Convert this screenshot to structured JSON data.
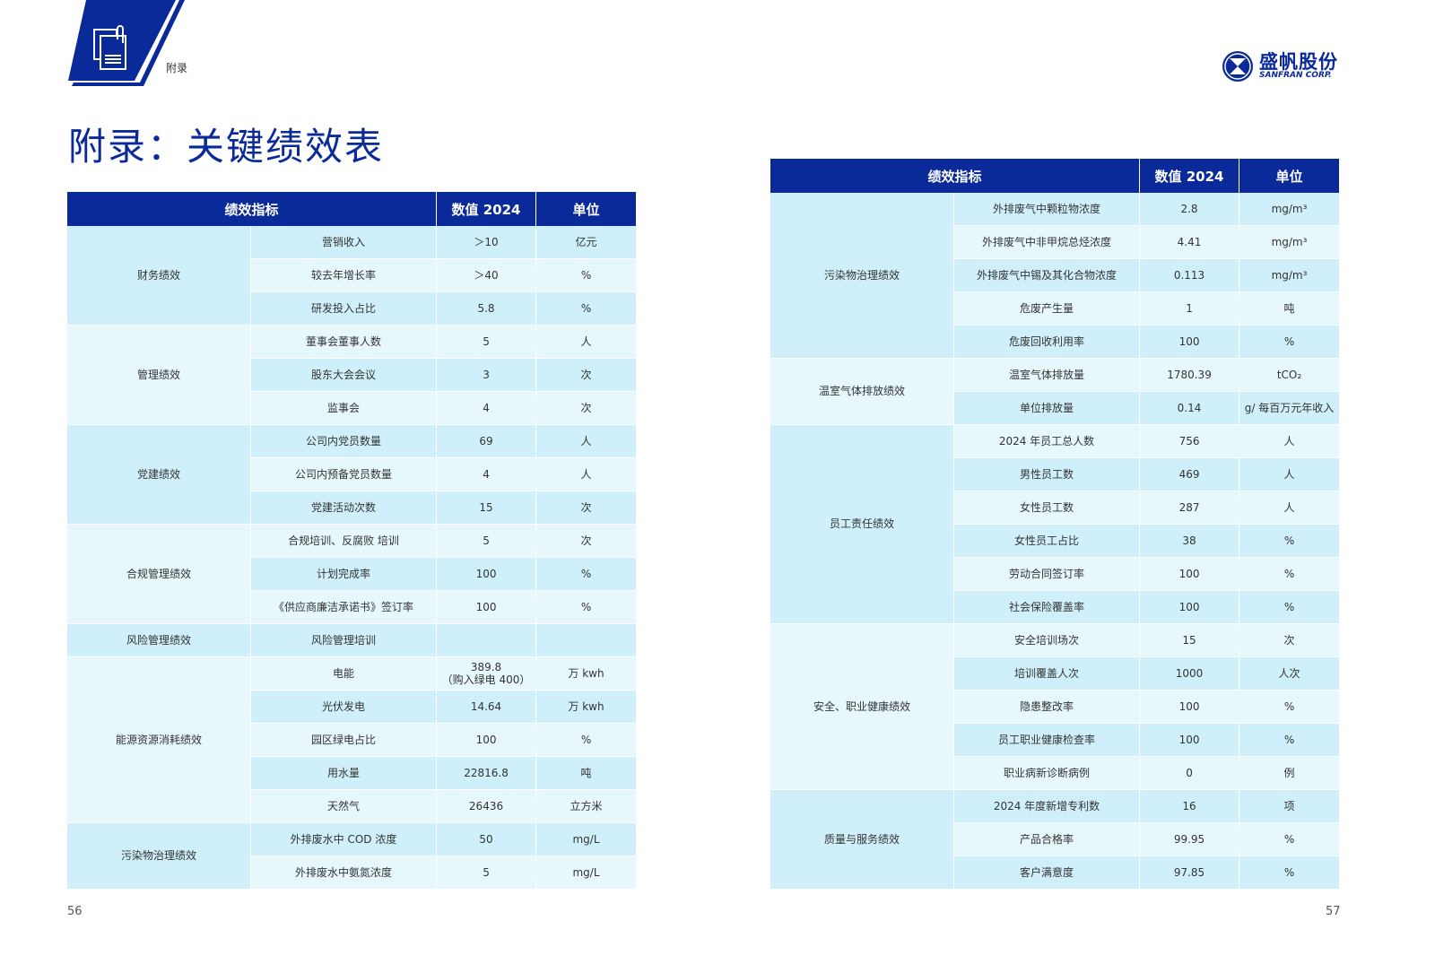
{
  "header": {
    "section_label": "附录",
    "icon": "document-clip-icon",
    "brand_color": "#0a2a9a"
  },
  "logo": {
    "cn": "盛帆股份",
    "en": "SANFRAN CORP."
  },
  "page_title": "附录：关键绩效表",
  "columns": [
    "绩效指标",
    "数值 2024",
    "单位"
  ],
  "colors": {
    "header": "#0a2a9a",
    "row_dark": "#cff0fb",
    "row_light": "#e7f8fd"
  },
  "left_table": [
    {
      "group": "财务绩效",
      "rows": [
        [
          "营销收入",
          "＞10",
          "亿元"
        ],
        [
          "较去年增长率",
          "＞40",
          "%"
        ],
        [
          "研发投入占比",
          "5.8",
          "%"
        ]
      ]
    },
    {
      "group": "管理绩效",
      "rows": [
        [
          "董事会董事人数",
          "5",
          "人"
        ],
        [
          "股东大会会议",
          "3",
          "次"
        ],
        [
          "监事会",
          "4",
          "次"
        ]
      ]
    },
    {
      "group": "党建绩效",
      "rows": [
        [
          "公司内党员数量",
          "69",
          "人"
        ],
        [
          "公司内预备党员数量",
          "4",
          "人"
        ],
        [
          "党建活动次数",
          "15",
          "次"
        ]
      ]
    },
    {
      "group": "合规管理绩效",
      "rows": [
        [
          "合规培训、反腐败 培训",
          "5",
          "次"
        ],
        [
          "计划完成率",
          "100",
          "%"
        ],
        [
          "《供应商廉洁承诺书》签订率",
          "100",
          "%"
        ]
      ]
    },
    {
      "group": "风险管理绩效",
      "rows": [
        [
          "风险管理培训",
          "",
          ""
        ]
      ]
    },
    {
      "group": "能源资源消耗绩效",
      "rows": [
        [
          "电能",
          "389.8\n（购入绿电 400）",
          "万 kwh"
        ],
        [
          "光伏发电",
          "14.64",
          "万 kwh"
        ],
        [
          "园区绿电占比",
          "100",
          "%"
        ],
        [
          "用水量",
          "22816.8",
          "吨"
        ],
        [
          "天然气",
          "26436",
          "立方米"
        ]
      ]
    },
    {
      "group": "污染物治理绩效",
      "rows": [
        [
          "外排废水中 COD 浓度",
          "50",
          "mg/L"
        ],
        [
          "外排废水中氨氮浓度",
          "5",
          "mg/L"
        ]
      ]
    }
  ],
  "right_table": [
    {
      "group": "污染物治理绩效",
      "rows": [
        [
          "外排废气中颗粒物浓度",
          "2.8",
          "mg/m³"
        ],
        [
          "外排废气中非甲烷总烃浓度",
          "4.41",
          "mg/m³"
        ],
        [
          "外排废气中锡及其化合物浓度",
          "0.113",
          "mg/m³"
        ],
        [
          "危废产生量",
          "1",
          "吨"
        ],
        [
          "危废回收利用率",
          "100",
          "%"
        ]
      ]
    },
    {
      "group": "温室气体排放绩效",
      "rows": [
        [
          "温室气体排放量",
          "1780.39",
          "tCO₂"
        ],
        [
          "单位排放量",
          "0.14",
          "g/ 每百万元年收入"
        ]
      ]
    },
    {
      "group": "员工责任绩效",
      "rows": [
        [
          "2024 年员工总人数",
          "756",
          "人"
        ],
        [
          "男性员工数",
          "469",
          "人"
        ],
        [
          "女性员工数",
          "287",
          "人"
        ],
        [
          "女性员工占比",
          "38",
          "%"
        ],
        [
          "劳动合同签订率",
          "100",
          "%"
        ],
        [
          "社会保险覆盖率",
          "100",
          "%"
        ]
      ]
    },
    {
      "group": "安全、职业健康绩效",
      "rows": [
        [
          "安全培训场次",
          "15",
          "次"
        ],
        [
          "培训覆盖人次",
          "1000",
          "人次"
        ],
        [
          "隐患整改率",
          "100",
          "%"
        ],
        [
          "员工职业健康检查率",
          "100",
          "%"
        ],
        [
          "职业病新诊断病例",
          "0",
          "例"
        ]
      ]
    },
    {
      "group": "质量与服务绩效",
      "rows": [
        [
          "2024 年度新增专利数",
          "16",
          "项"
        ],
        [
          "产品合格率",
          "99.95",
          "%"
        ],
        [
          "客户满意度",
          "97.85",
          "%"
        ]
      ]
    }
  ],
  "page_numbers": {
    "left": "56",
    "right": "57"
  }
}
